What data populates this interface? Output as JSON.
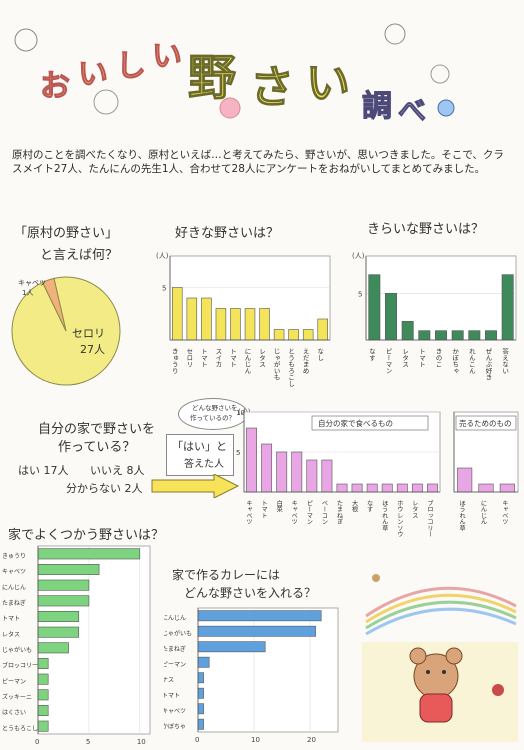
{
  "title": {
    "chars": [
      "お",
      "い",
      "し",
      "い",
      "野",
      "さ",
      "い",
      "調",
      "べ"
    ]
  },
  "intro": "原村のことを調べたくなり、原村といえば…と考えてみたら、野さいが、思いつきました。そこで、クラスメイト27人、たんにんの先生1人、合わせて28人にアンケートをおねがいしてまとめてみました。",
  "pie": {
    "heading_line1": "「原村の野さい」",
    "heading_line2": "と言えば何？",
    "chart_data": {
      "type": "pie",
      "slices": [
        {
          "label": "セロリ",
          "count_label": "27人",
          "value": 27,
          "color": "#f3ec86"
        },
        {
          "label": "キャベツ",
          "count_label": "1人",
          "value": 1,
          "color": "#f2b07a"
        }
      ]
    }
  },
  "like": {
    "heading": "好きな野さいは？",
    "unit": "(人)",
    "chart_data": {
      "type": "bar",
      "categories": [
        "きゅうり",
        "セロリ",
        "トマト",
        "スイカ",
        "トマト",
        "にんじん",
        "レタス",
        "じゃがいも",
        "とうもろこし",
        "えだまめ",
        "なし"
      ],
      "values": [
        5,
        4,
        4,
        3,
        3,
        3,
        3,
        1,
        1,
        1,
        2
      ],
      "ylim": [
        0,
        8
      ],
      "yticks": [
        5
      ],
      "color": "#f4e45a"
    }
  },
  "dislike": {
    "heading": "きらいな野さいは？",
    "unit": "(人)",
    "chart_data": {
      "type": "bar",
      "categories": [
        "なす",
        "ピーマン",
        "レタス",
        "トマト",
        "きのこ",
        "かぼちゃ",
        "れんこん",
        "ぜんぶ好き",
        "答えない"
      ],
      "values": [
        7,
        5,
        2,
        1,
        1,
        1,
        1,
        1,
        7
      ],
      "ylim": [
        0,
        9
      ],
      "yticks": [
        5
      ],
      "color": "#3f8a5a"
    }
  },
  "grow": {
    "heading_line1": "自分の家で野さいを",
    "heading_line2": "作っている？",
    "yes": "はい 17人",
    "no": "いいえ 8人",
    "unknown": "分からない 2人",
    "yes_box_line1": "「はい」と",
    "yes_box_line2": "答えた人",
    "bubble_line1": "どんな野さいを",
    "bubble_line2": "作っているの？",
    "unit": "(人)",
    "section1": "自分の家で食べるもの",
    "section2": "売るためのもの",
    "chart_data": [
      {
        "type": "bar",
        "categories": [
          "キャベツ",
          "トマト",
          "白菜",
          "キャベツ",
          "ピーマン",
          "ベーコン",
          "たまねぎ",
          "大根",
          "なす",
          "ほうれん草",
          "ホウレンソウ",
          "レタス",
          "ブロッコリー"
        ],
        "values": [
          8,
          6,
          5,
          5,
          4,
          4,
          1,
          1,
          1,
          1,
          1,
          1,
          1
        ],
        "ylim": [
          0,
          10
        ],
        "yticks": [
          5,
          10
        ],
        "color": "#e8a6e4"
      },
      {
        "type": "bar",
        "categories": [
          "ほうれん草",
          "にんじん",
          "キャベツ"
        ],
        "values": [
          3,
          1,
          1
        ],
        "ylim": [
          0,
          10
        ],
        "color": "#e8a6e4"
      }
    ]
  },
  "use": {
    "heading": "家でよくつかう野さいは？",
    "chart_data": {
      "type": "bar",
      "orientation": "horizontal",
      "categories": [
        "きゅうり",
        "キャベツ",
        "にんじん",
        "たまねぎ",
        "トマト",
        "レタス",
        "じゃがいも",
        "ブロッコリー",
        "ピーマン",
        "ズッキーニ",
        "はくさい",
        "とうもろこし"
      ],
      "values": [
        10,
        6,
        5,
        5,
        4,
        4,
        3,
        1,
        1,
        1,
        1,
        1
      ],
      "xlim": [
        0,
        11
      ],
      "xticks": [
        0,
        5,
        10
      ],
      "color": "#7ed37e"
    }
  },
  "curry": {
    "heading_line1": "家で作るカレーには",
    "heading_line2": "どんな野さいを入れる？",
    "chart_data": {
      "type": "bar",
      "orientation": "horizontal",
      "categories": [
        "にんじん",
        "じゃがいも",
        "たまねぎ",
        "ピーマン",
        "ナス",
        "トマト",
        "キャベツ",
        "かぼちゃ"
      ],
      "values": [
        22,
        21,
        12,
        2,
        1,
        1,
        1,
        1
      ],
      "xlim": [
        0,
        25
      ],
      "xticks": [
        0,
        10,
        20
      ],
      "color": "#5fa0de"
    }
  }
}
